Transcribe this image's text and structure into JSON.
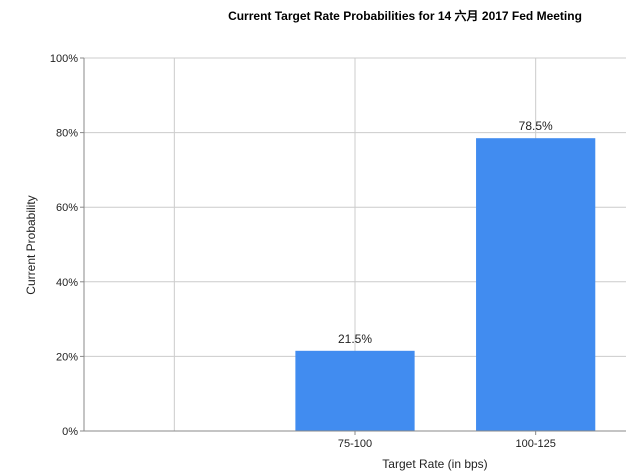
{
  "chart_data": {
    "type": "bar",
    "title": "Current Target Rate Probabilities for 14 六月 2017  Fed Meeting",
    "xlabel": "Target Rate (in bps)",
    "ylabel": "Current Probability",
    "categories": [
      "",
      "75-100",
      "100-125"
    ],
    "values": [
      0,
      21.5,
      78.5
    ],
    "data_labels": [
      "",
      "21.5%",
      "78.5%"
    ],
    "ylim": [
      0,
      100
    ],
    "yticks": [
      "0%",
      "20%",
      "40%",
      "60%",
      "80%",
      "100%"
    ],
    "grid": true,
    "legend": "none",
    "bar_color": "#418cf0",
    "grid_color": "#cccccc"
  }
}
